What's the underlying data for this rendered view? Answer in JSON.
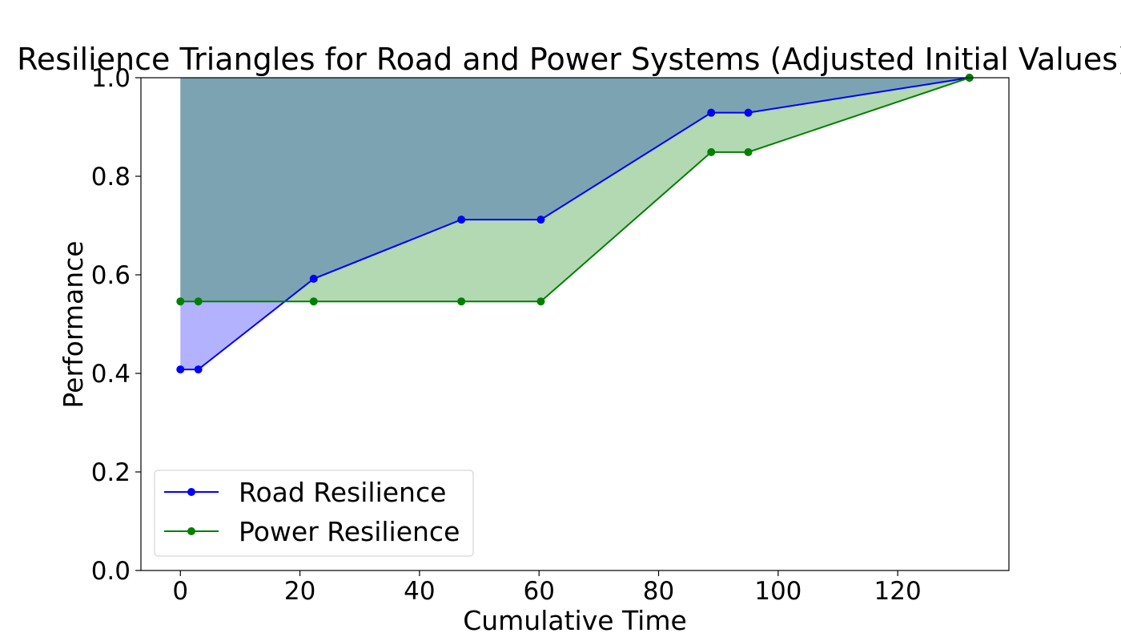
{
  "chart_data": {
    "type": "line",
    "title": "Resilience Triangles for Road and Power Systems (Adjusted Initial Values)",
    "xlabel": "Cumulative Time",
    "ylabel": "Performance",
    "xlim": [
      -6.6,
      138.6
    ],
    "ylim": [
      0,
      1
    ],
    "xticks": [
      0,
      20,
      40,
      60,
      80,
      100,
      120
    ],
    "yticks": [
      0.0,
      0.2,
      0.4,
      0.6,
      0.8,
      1.0
    ],
    "xtick_labels": [
      "0",
      "20",
      "40",
      "60",
      "80",
      "100",
      "120"
    ],
    "ytick_labels": [
      "0.0",
      "0.2",
      "0.4",
      "0.6",
      "0.8",
      "1.0"
    ],
    "grid": false,
    "legend_position": "lower-left",
    "fill_to": 1.0,
    "series": [
      {
        "name": "Road Resilience",
        "color": "#0000ff",
        "fill_color": "#0000ff",
        "x": [
          0,
          3,
          22.3,
          47,
          60.3,
          88.8,
          95,
          132
        ],
        "y": [
          0.408,
          0.408,
          0.592,
          0.712,
          0.712,
          0.929,
          0.929,
          1.0
        ]
      },
      {
        "name": "Power Resilience",
        "color": "#008000",
        "fill_color": "#008000",
        "x": [
          0,
          3,
          22.3,
          47,
          60.3,
          88.8,
          95,
          132
        ],
        "y": [
          0.546,
          0.546,
          0.546,
          0.546,
          0.546,
          0.849,
          0.849,
          1.0
        ]
      }
    ]
  }
}
